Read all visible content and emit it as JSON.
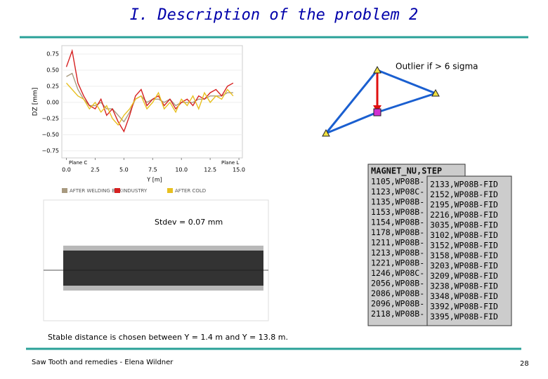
{
  "header": {
    "title": "I. Description of the problem 2"
  },
  "profile_chart": {
    "type": "line",
    "ylabel": "DZ [mm]",
    "xlabel": "Y [m]",
    "annotations": [
      "Plane C",
      "Plane L"
    ],
    "x": [
      0,
      0.5,
      1,
      1.5,
      2,
      2.5,
      3,
      3.5,
      4,
      4.5,
      5,
      5.5,
      6,
      6.5,
      7,
      7.5,
      8,
      8.5,
      9,
      9.5,
      10,
      10.5,
      11,
      11.5,
      12,
      12.5,
      13,
      13.5,
      14,
      14.5
    ],
    "series": [
      {
        "name": "AFTER WELDING BOX",
        "color": "#a89a80",
        "values": [
          0.4,
          0.45,
          0.2,
          0.05,
          -0.05,
          -0.05,
          0.0,
          -0.1,
          -0.1,
          -0.2,
          -0.3,
          -0.15,
          0.05,
          0.1,
          0.0,
          0.05,
          0.05,
          0.0,
          0.05,
          -0.05,
          0.0,
          0.0,
          0.0,
          0.05,
          0.05,
          0.1,
          0.1,
          0.1,
          0.15,
          0.15
        ]
      },
      {
        "name": "INDUSTRY",
        "color": "#d62020",
        "values": [
          0.55,
          0.8,
          0.3,
          0.1,
          -0.05,
          -0.1,
          0.05,
          -0.2,
          -0.1,
          -0.3,
          -0.45,
          -0.2,
          0.1,
          0.2,
          -0.05,
          0.05,
          0.1,
          -0.05,
          0.05,
          -0.1,
          0.0,
          0.05,
          -0.05,
          0.1,
          0.05,
          0.15,
          0.2,
          0.1,
          0.25,
          0.3
        ]
      },
      {
        "name": "AFTER COLD",
        "color": "#e8c020",
        "values": [
          0.3,
          0.2,
          0.1,
          0.05,
          -0.1,
          0.0,
          -0.15,
          -0.05,
          -0.25,
          -0.35,
          -0.2,
          -0.1,
          0.05,
          0.1,
          -0.1,
          0.0,
          0.15,
          -0.1,
          0.0,
          -0.15,
          0.05,
          -0.05,
          0.1,
          -0.1,
          0.15,
          0.0,
          0.1,
          0.05,
          0.2,
          0.1
        ]
      }
    ],
    "xlim": [
      -0.4,
      15.3
    ],
    "ylim": [
      -0.86,
      0.88
    ],
    "xticks": [
      {
        "value": 0,
        "label": "0.0"
      },
      2.5,
      {
        "value": 5,
        "label": "5.0"
      },
      7.5,
      {
        "value": 10,
        "label": "10.0"
      },
      12.5,
      {
        "value": 15,
        "label": "15.0"
      }
    ],
    "yticks": [
      0.75,
      {
        "value": 0.5,
        "label": "0.50"
      },
      0.25,
      {
        "value": 0,
        "label": "0.00"
      },
      {
        "value": -0.25,
        "label": "−0.25"
      },
      {
        "value": -0.5,
        "label": "−0.50"
      },
      {
        "value": -0.75,
        "label": "−0.75"
      }
    ]
  },
  "noise_panel": {
    "annotation": "Stdev = 0.07 mm"
  },
  "diagram": {
    "label": "Outlier if > 6 sigma"
  },
  "table": {
    "header": "MAGNET_NU,STEP",
    "column1": [
      "1105,WP08B-",
      "1123,WP08C-",
      "1135,WP08B-",
      "1153,WP08B-",
      "1154,WP08B-",
      "1178,WP08B-",
      "1211,WP08B-",
      "1213,WP08B-",
      "1221,WP08B-",
      "1246,WP08C-",
      "2056,WP08B-",
      "2086,WP08B-",
      "2096,WP08B-",
      "2118,WP08B-"
    ],
    "column2": [
      "2133,WP08B-FID",
      "2152,WP08B-FID",
      "2195,WP08B-FID",
      "2216,WP08B-FID",
      "3035,WP08B-FID",
      "3102,WP08B-FID",
      "3152,WP08B-FID",
      "3158,WP08B-FID",
      "3203,WP08B-FID",
      "3209,WP08B-FID",
      "3238,WP08B-FID",
      "3348,WP08B-FID",
      "3392,WP08B-FID",
      "3395,WP08B-FID"
    ]
  },
  "note": "Stable distance is chosen between Y = 1.4 m and Y = 13.8 m.",
  "footer": {
    "author": "Saw Tooth and remedies - Elena Wildner",
    "page": "28"
  }
}
